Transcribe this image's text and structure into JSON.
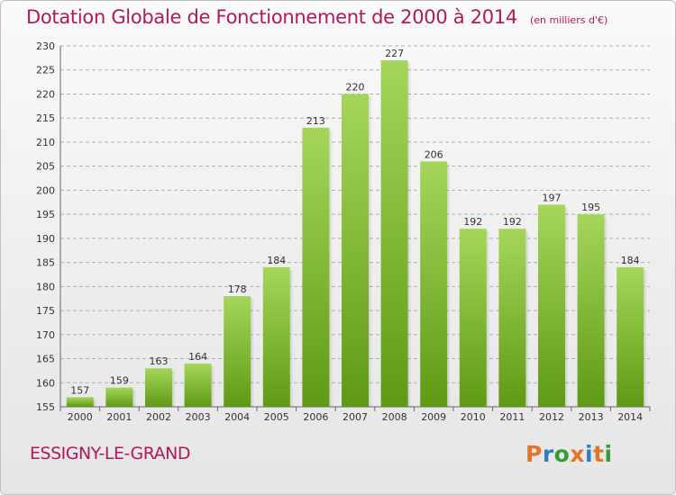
{
  "header": {
    "title": "Dotation Globale de Fonctionnement de 2000 à 2014",
    "subtitle": "(en milliers d'€)"
  },
  "footer": {
    "city": "ESSIGNY-LE-GRAND",
    "logo_text": "Proxiti",
    "logo_colors": [
      "#e0762b",
      "#2f7fbf",
      "#3a9a3a",
      "#e0762b",
      "#2f7fbf",
      "#e0762b",
      "#3a9a3a"
    ]
  },
  "colors": {
    "title": "#b1195a",
    "bar_top": "#a5d65a",
    "bar_bottom": "#5f9a14",
    "grid": "#b0b0b0",
    "axis_text": "#333333"
  },
  "chart_data": {
    "type": "bar",
    "title": "Dotation Globale de Fonctionnement de 2000 à 2014",
    "subtitle": "(en milliers d'€)",
    "xlabel": "",
    "ylabel": "",
    "categories": [
      "2000",
      "2001",
      "2002",
      "2003",
      "2004",
      "2005",
      "2006",
      "2007",
      "2008",
      "2009",
      "2010",
      "2011",
      "2012",
      "2013",
      "2014"
    ],
    "values": [
      157,
      159,
      163,
      164,
      178,
      184,
      213,
      220,
      227,
      206,
      192,
      192,
      197,
      195,
      184
    ],
    "ylim": [
      155,
      230
    ],
    "yticks": [
      155,
      160,
      165,
      170,
      175,
      180,
      185,
      190,
      195,
      200,
      205,
      210,
      215,
      220,
      225,
      230
    ],
    "grid": true,
    "legend": "none"
  }
}
